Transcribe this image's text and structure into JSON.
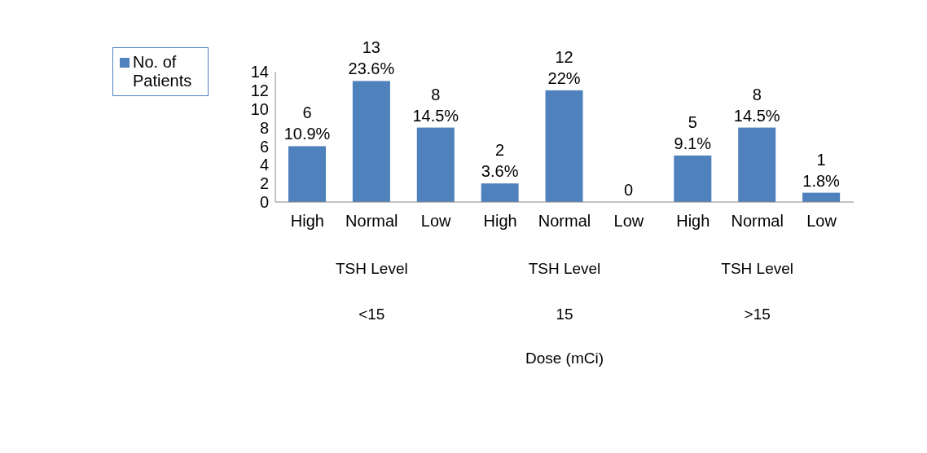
{
  "chart_data": {
    "type": "bar",
    "categories": [
      "High",
      "Normal",
      "Low",
      "High",
      "Normal",
      "Low",
      "High",
      "Normal",
      "Low"
    ],
    "series": [
      {
        "name": "No. of Patients",
        "color": "#4f81bd",
        "values": [
          6,
          13,
          8,
          2,
          12,
          0,
          5,
          8,
          1
        ]
      }
    ],
    "value_labels": [
      "6\n10.9%",
      "13\n23.6%",
      "8\n14.5%",
      "2\n3.6%",
      "12\n22%",
      "0",
      "5\n9.1%",
      "8\n14.5%",
      "1\n1.8%"
    ],
    "annotations": [
      "TSH Level",
      "TSH Level",
      "TSH Level",
      "<15",
      "15",
      ">15",
      "Dose (mCi)"
    ],
    "ylim": [
      0,
      14
    ],
    "yticks": [
      0,
      2,
      4,
      6,
      8,
      10,
      12,
      14
    ],
    "grid": false,
    "legend": "top left"
  }
}
